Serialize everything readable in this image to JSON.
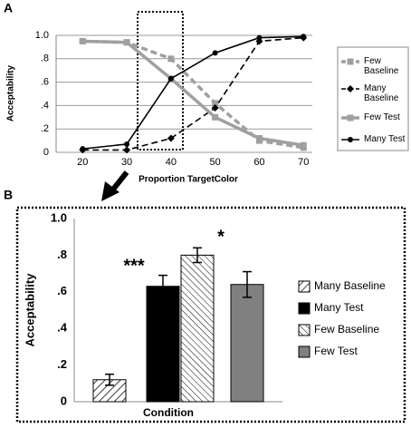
{
  "chart_data": [
    {
      "type": "line",
      "panel": "A",
      "ylabel": "Acceptability",
      "xlabel": "Proportion TargetColor",
      "x": [
        20,
        30,
        40,
        50,
        60,
        70
      ],
      "xlim": [
        14,
        72
      ],
      "xticks": [
        20,
        30,
        40,
        50,
        60,
        70
      ],
      "ylim": [
        0,
        1
      ],
      "yticks": [
        0,
        {
          "value": 0.2,
          "label": ".2"
        },
        {
          "value": 0.4,
          "label": ".4"
        },
        {
          "value": 0.6,
          "label": ".6"
        },
        {
          "value": 0.8,
          "label": ".8"
        },
        {
          "value": 1,
          "label": "1.0"
        }
      ],
      "grid": true,
      "series": [
        {
          "name": "Few Baseline",
          "color": "#a0a0a0",
          "dash": true,
          "marker": "square",
          "values": [
            0.95,
            0.94,
            0.8,
            0.42,
            0.1,
            0.04
          ]
        },
        {
          "name": "Many Baseline",
          "color": "#000000",
          "dash": true,
          "marker": "diamond",
          "values": [
            0.02,
            0.02,
            0.12,
            0.38,
            0.95,
            0.98
          ]
        },
        {
          "name": "Few Test",
          "color": "#a0a0a0",
          "dash": false,
          "marker": "square",
          "values": [
            0.95,
            0.94,
            0.63,
            0.3,
            0.12,
            0.06
          ]
        },
        {
          "name": "Many Test",
          "color": "#000000",
          "dash": false,
          "marker": "circle",
          "values": [
            0.03,
            0.07,
            0.63,
            0.85,
            0.98,
            0.99
          ]
        }
      ]
    },
    {
      "type": "bar",
      "panel": "B",
      "ylabel": "Acceptability",
      "xlabel": "Condition",
      "ylim": [
        0,
        1
      ],
      "yticks": [
        0,
        {
          "value": 0.2,
          "label": ".2"
        },
        {
          "value": 0.4,
          "label": ".4"
        },
        {
          "value": 0.6,
          "label": ".6"
        },
        {
          "value": 0.8,
          "label": ".8"
        },
        {
          "value": 1,
          "label": "1.0"
        }
      ],
      "annotations": [
        "***",
        "*"
      ],
      "series": [
        {
          "name": "Many Baseline",
          "color": "#ffffff",
          "hatch": "forward",
          "values": [
            0.12
          ],
          "errors": [
            0.03
          ]
        },
        {
          "name": "Many Test",
          "color": "#000000",
          "values": [
            0.63
          ],
          "errors": [
            0.06
          ]
        },
        {
          "name": "Few Baseline",
          "color": "#ffffff",
          "hatch": "back",
          "values": [
            0.8
          ],
          "errors": [
            0.04
          ]
        },
        {
          "name": "Few Test",
          "color": "#808080",
          "values": [
            0.64
          ],
          "errors": [
            0.07
          ]
        }
      ]
    }
  ]
}
